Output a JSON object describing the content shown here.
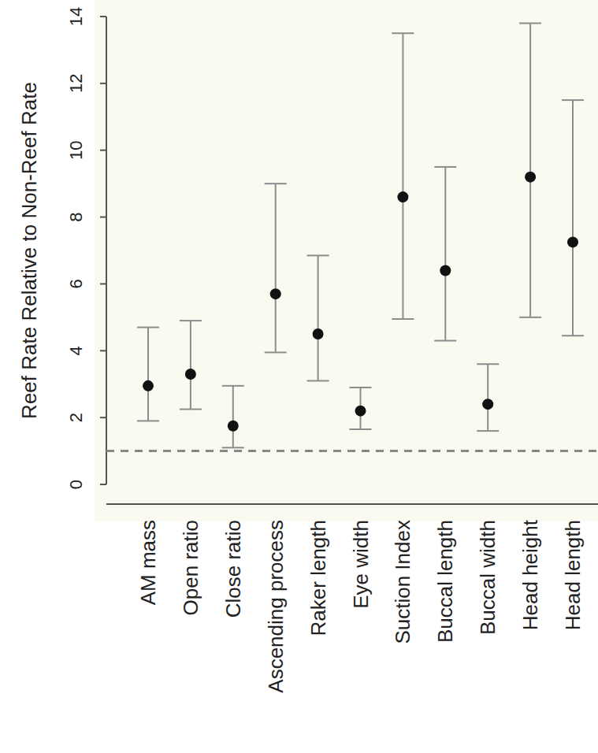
{
  "chart_data": {
    "type": "scatter",
    "y_label": "Reef Rate Relative to Non-Reef Rate",
    "categories": [
      "AM mass",
      "Open ratio",
      "Close ratio",
      "Ascending process",
      "Raker length",
      "Eye width",
      "Suction Index",
      "Buccal length",
      "Buccal width",
      "Head height",
      "Head length"
    ],
    "values": [
      2.95,
      3.3,
      1.75,
      5.7,
      4.5,
      2.2,
      8.6,
      6.4,
      2.4,
      9.2,
      7.25
    ],
    "lower": [
      1.9,
      2.25,
      1.1,
      3.95,
      3.1,
      1.65,
      4.95,
      4.3,
      1.6,
      5.0,
      4.45
    ],
    "upper": [
      4.7,
      4.9,
      2.95,
      9.0,
      6.85,
      2.9,
      13.5,
      9.5,
      3.6,
      13.8,
      11.5
    ],
    "reference_line": 1,
    "color": "#111111",
    "marker": "circle",
    "ylim": [
      0,
      14
    ],
    "yticks": [
      0,
      2,
      4,
      6,
      8,
      10,
      12,
      14
    ],
    "grid": false
  }
}
